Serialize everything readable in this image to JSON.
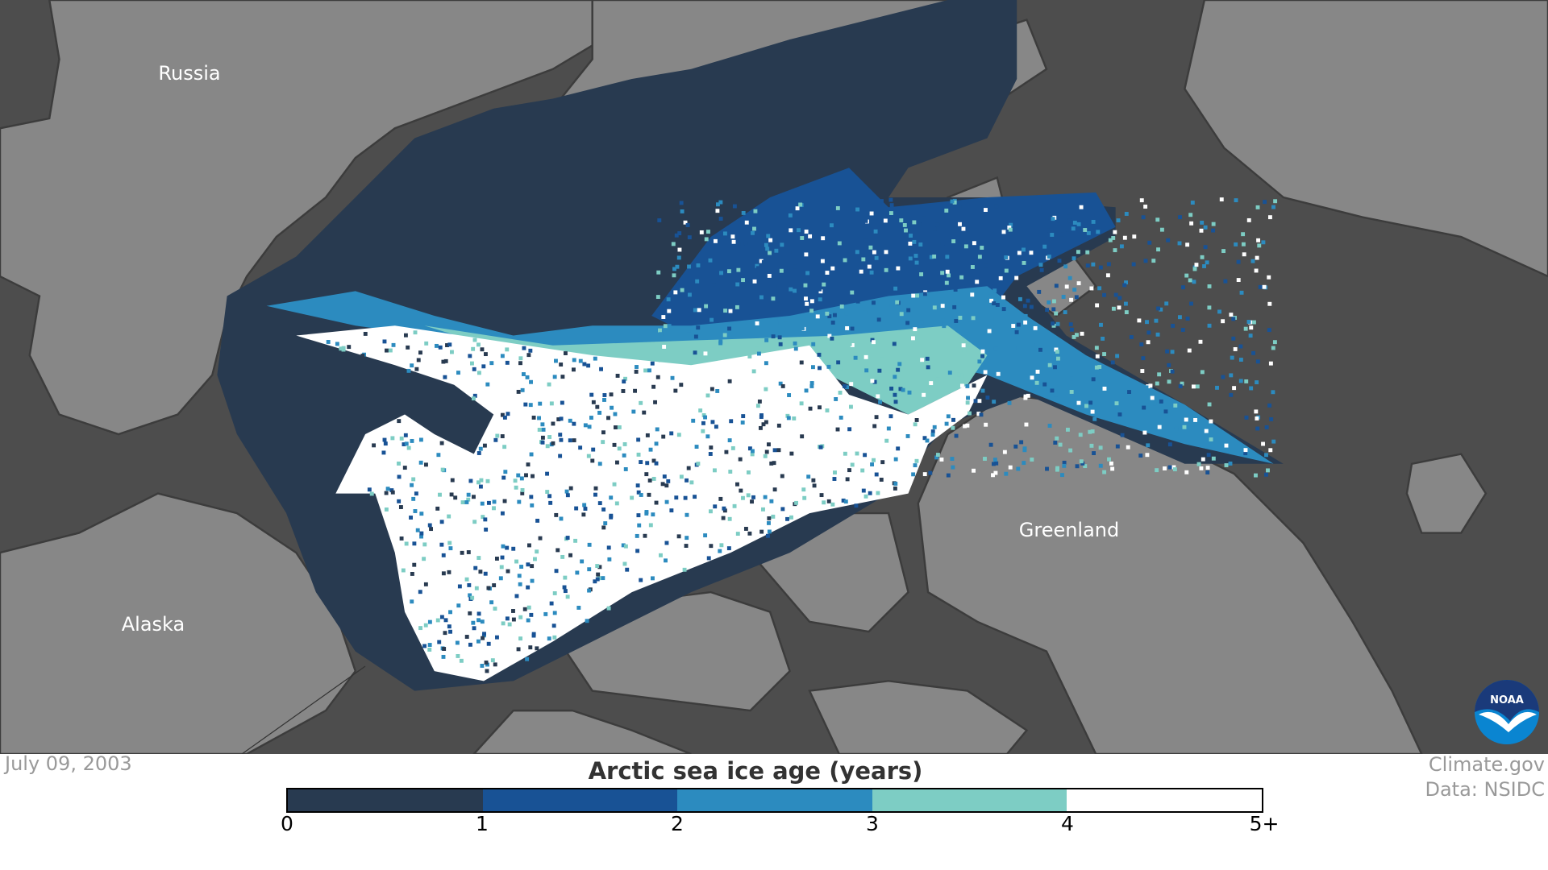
{
  "map": {
    "labels": {
      "russia": "Russia",
      "alaska": "Alaska",
      "greenland": "Greenland"
    },
    "colors": {
      "ocean": "#4d4d4d",
      "land": "#878787",
      "coast": "#3c3c3c"
    }
  },
  "date": "July 09, 2003",
  "legend": {
    "title": "Arctic sea ice age (years)",
    "ticks": [
      "0",
      "1",
      "2",
      "3",
      "4",
      "5+"
    ],
    "colors": [
      "#283a50",
      "#185295",
      "#2c8bbf",
      "#7dcdc4",
      "#ffffff"
    ]
  },
  "credits": {
    "line1": "Climate.gov",
    "line2": "Data: NSIDC"
  },
  "logo": {
    "text": "NOAA"
  }
}
